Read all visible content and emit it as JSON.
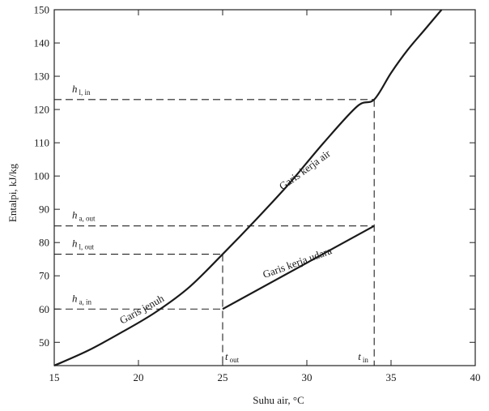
{
  "chart_data": {
    "type": "line",
    "xlabel": "Suhu air, °C",
    "ylabel": "Entalpi, kJ/kg",
    "xlim": [
      15,
      40
    ],
    "ylim": [
      43,
      150
    ],
    "x_ticks": [
      15,
      20,
      25,
      30,
      35,
      40
    ],
    "y_ticks": [
      50,
      60,
      70,
      80,
      90,
      100,
      110,
      120,
      130,
      140,
      150
    ],
    "grid": false,
    "series": [
      {
        "name": "Garis jenuh",
        "x": [
          15,
          17,
          19,
          21,
          23,
          25,
          27,
          29,
          31,
          33,
          34,
          35,
          36,
          37,
          38
        ],
        "y": [
          43,
          47.5,
          53,
          59,
          66.5,
          76.5,
          87,
          98,
          110,
          121,
          123,
          131,
          138,
          144,
          150
        ]
      },
      {
        "name": "Garis kerja udara",
        "x": [
          25,
          34
        ],
        "y": [
          60,
          85
        ]
      }
    ],
    "reference_lines": [
      {
        "label_main": "h",
        "label_sub": "l, in",
        "y": 123,
        "x_end": 34
      },
      {
        "label_main": "h",
        "label_sub": "a, out",
        "y": 85,
        "x_end": 34
      },
      {
        "label_main": "h",
        "label_sub": "l, out",
        "y": 76.5,
        "x_end": 25
      },
      {
        "label_main": "h",
        "label_sub": "a, in",
        "y": 60,
        "x_end": 25
      }
    ],
    "vertical_markers": [
      {
        "label_main": "t",
        "label_sub": "out",
        "x": 25
      },
      {
        "label_main": "t",
        "label_sub": "in",
        "x": 34
      }
    ],
    "annotations": [
      {
        "text": "Garis kerja air",
        "x": 30,
        "y": 101
      },
      {
        "text": "Garis kerja udara",
        "x": 29.5,
        "y": 73
      },
      {
        "text": "Garis jenuh",
        "x": 20.3,
        "y": 59
      }
    ]
  }
}
